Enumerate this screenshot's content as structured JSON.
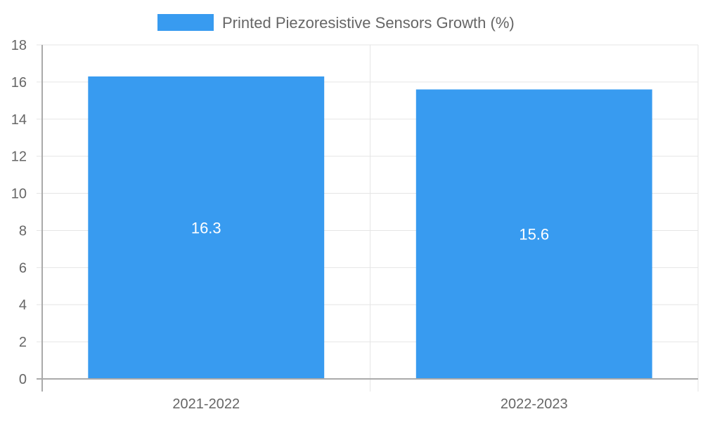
{
  "chart_data": {
    "type": "bar",
    "title": "",
    "legend": {
      "position": "top",
      "entries": [
        {
          "label": "Printed Piezoresistive Sensors Growth (%)",
          "color": "#389BF0"
        }
      ]
    },
    "categories": [
      "2021-2022",
      "2022-2023"
    ],
    "series": [
      {
        "name": "Printed Piezoresistive Sensors Growth (%)",
        "values": [
          16.3,
          15.6
        ],
        "color": "#389BF0"
      }
    ],
    "data_labels": [
      "16.3",
      "15.6"
    ],
    "xlabel": "",
    "ylabel": "",
    "ylim": [
      0,
      18
    ],
    "yticks": [
      "0",
      "2",
      "4",
      "6",
      "8",
      "10",
      "12",
      "14",
      "16",
      "18"
    ],
    "grid": true
  },
  "colors": {
    "bar": "#389BF0",
    "grid": "#e5e5e5",
    "axis": "#aaaaaa",
    "text": "#666666"
  }
}
